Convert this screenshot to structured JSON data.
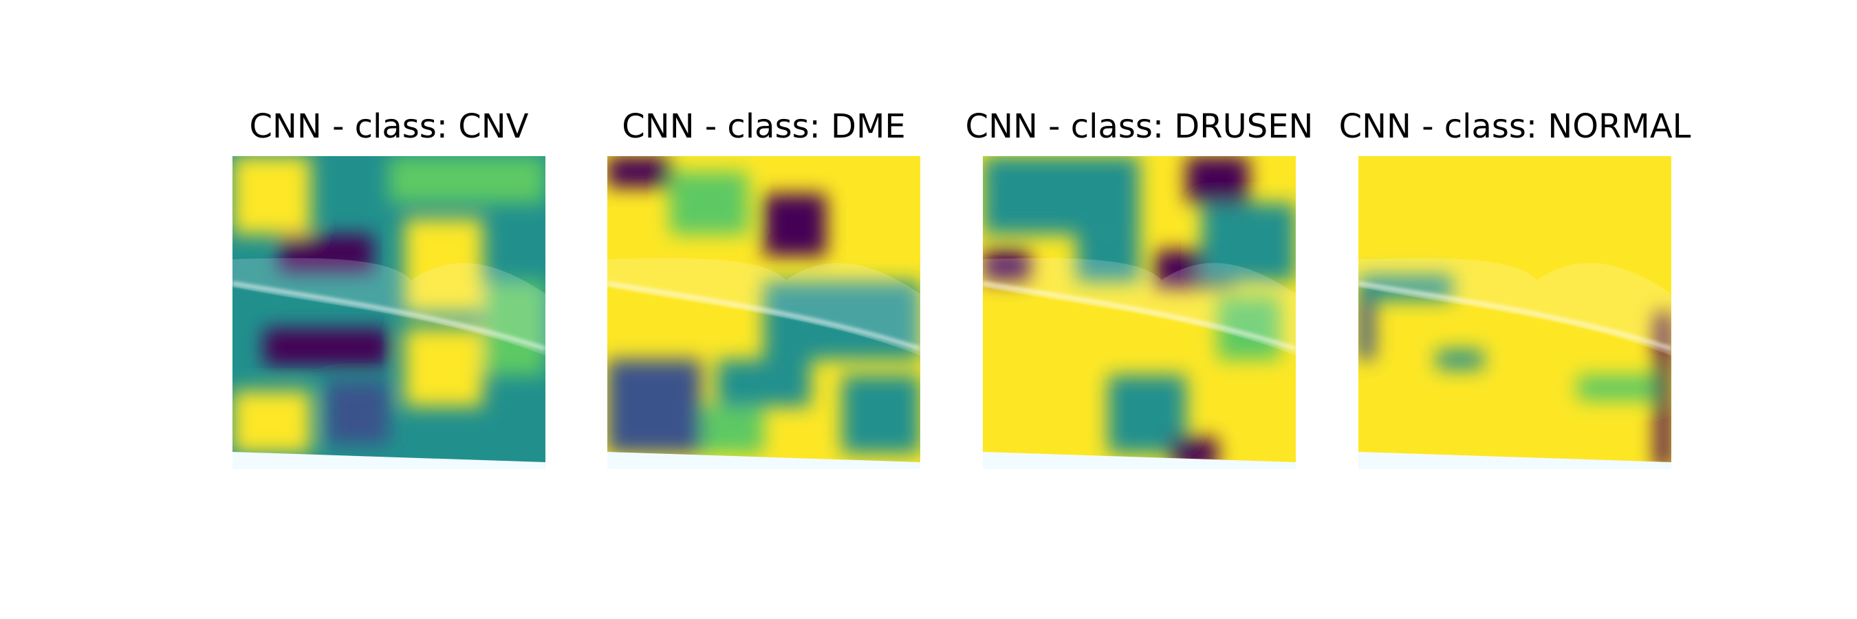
{
  "panels": [
    {
      "title": "CNN - class: CNV"
    },
    {
      "title": "CNN - class: DME"
    },
    {
      "title": "CNN - class: DRUSEN"
    },
    {
      "title": "CNN - class: NORMAL"
    }
  ]
}
